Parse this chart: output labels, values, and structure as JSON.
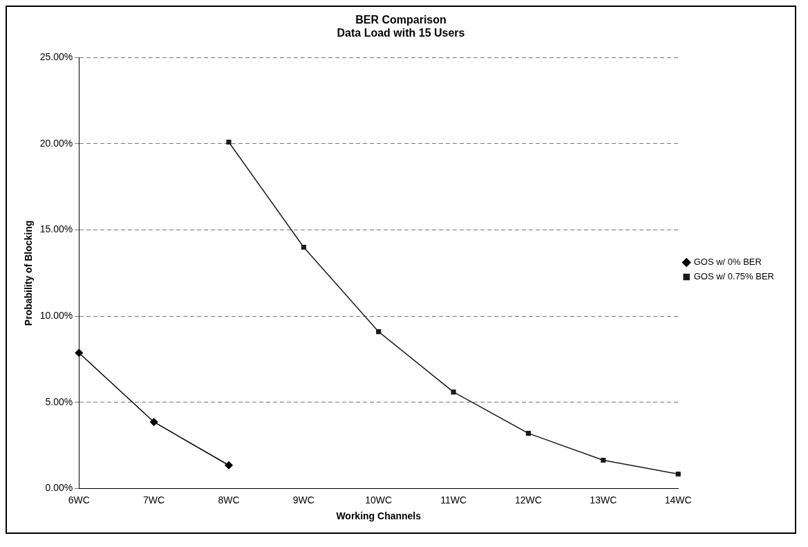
{
  "chart_data": {
    "type": "line",
    "title": [
      "BER Comparison",
      "Data Load with 15 Users"
    ],
    "xlabel": "Working Channels",
    "ylabel": "Probability of Blocking",
    "categories": [
      "6WC",
      "7WC",
      "8WC",
      "9WC",
      "10WC",
      "11WC",
      "12WC",
      "13WC",
      "14WC"
    ],
    "series": [
      {
        "name": "GOS w/ 0% BER",
        "color": "#000000",
        "marker": "diamond",
        "values": [
          7.87,
          3.86,
          1.35,
          null,
          null,
          null,
          null,
          null,
          null
        ]
      },
      {
        "name": "GOS w/ 0.75% BER",
        "color": "#1a1a1a",
        "marker": "square",
        "values": [
          null,
          null,
          20.1,
          14.0,
          9.1,
          5.6,
          3.2,
          1.64,
          0.84
        ]
      }
    ],
    "ylim": [
      0,
      25
    ],
    "yticks": [
      {
        "value": 0,
        "label": "0.00%"
      },
      {
        "value": 5,
        "label": "5.00%"
      },
      {
        "value": 10,
        "label": "10.00%"
      },
      {
        "value": 15,
        "label": "15.00%"
      },
      {
        "value": 20,
        "label": "20.00%"
      },
      {
        "value": 25,
        "label": "25.00%"
      }
    ],
    "grid": "y",
    "legend": "right",
    "line_style": "solid"
  }
}
